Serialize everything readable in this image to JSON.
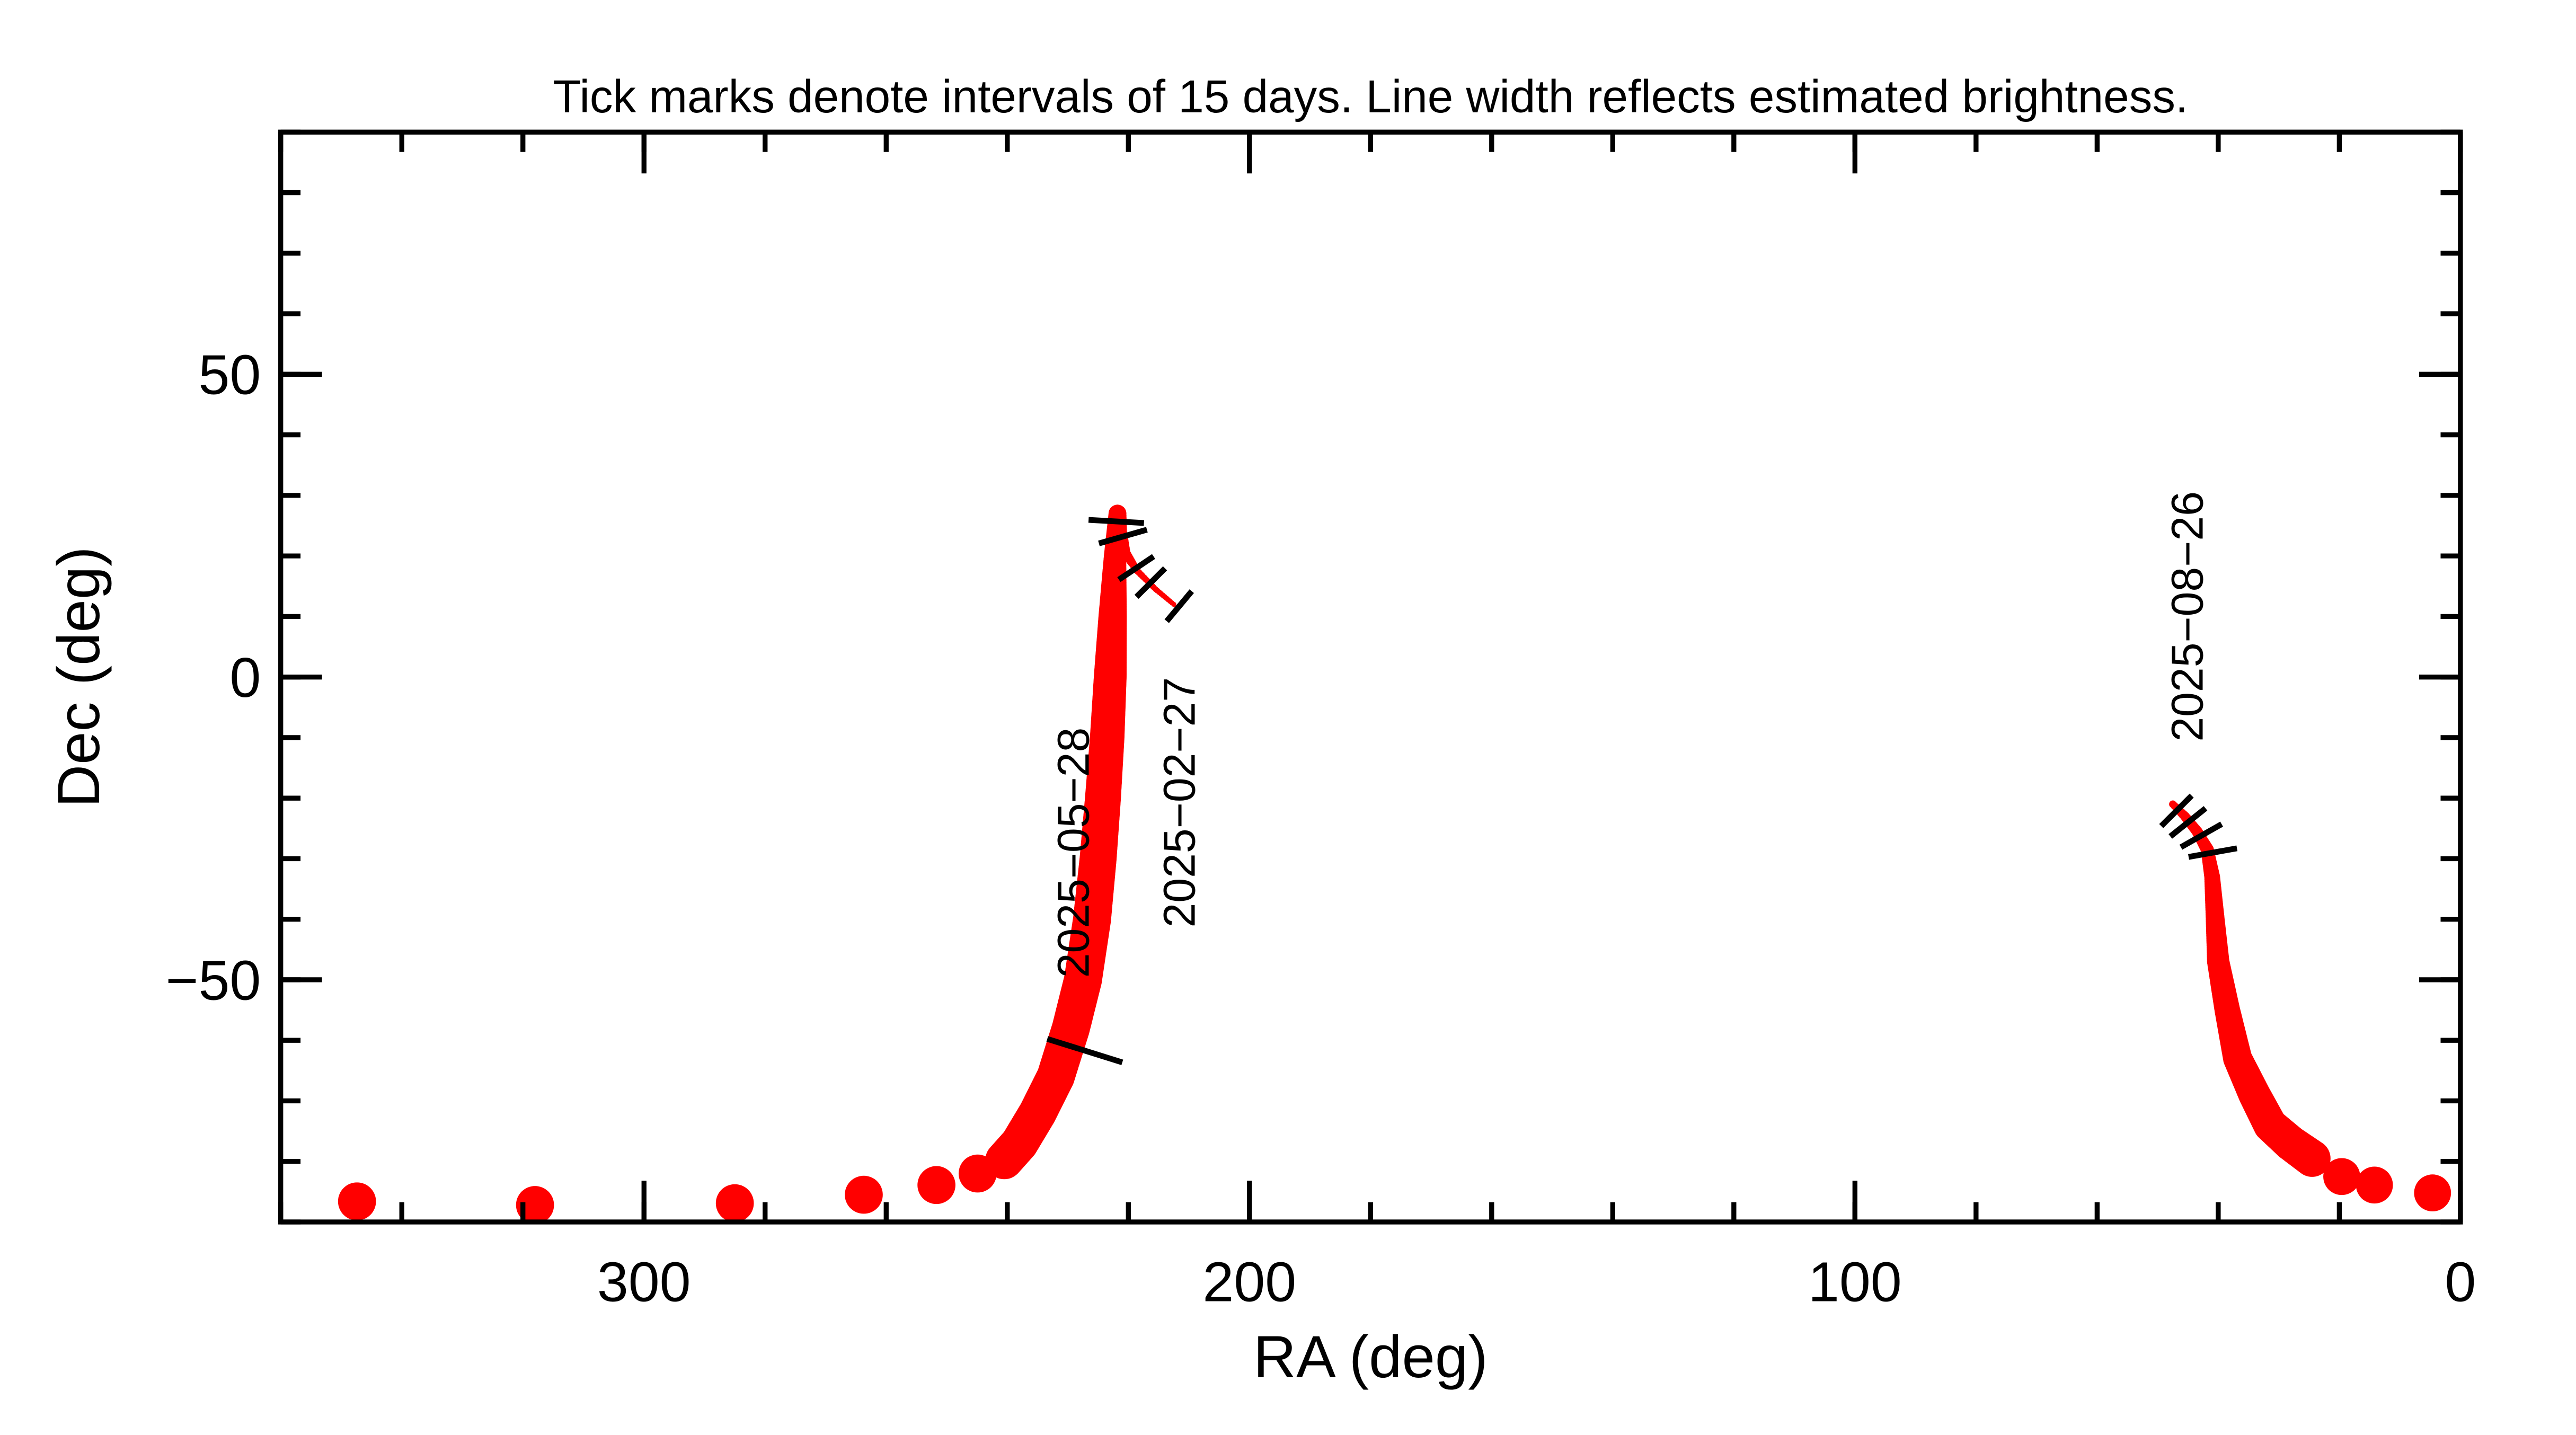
{
  "chart_data": {
    "type": "line",
    "title": "Tick marks denote intervals of 15 days.  Line width reflects estimated brightness.",
    "xlabel": "RA (deg)",
    "ylabel": "Dec (deg)",
    "xlim": [
      360,
      0
    ],
    "ylim": [
      -90,
      90
    ],
    "xticks": [
      300,
      200,
      100,
      0
    ],
    "xtick_labels": [
      "300",
      "200",
      "100",
      "0"
    ],
    "x_minor_step": 20,
    "yticks": [
      50,
      0,
      -50
    ],
    "ytick_labels": [
      "50",
      "0",
      "−50"
    ],
    "y_minor_step": 10,
    "grid": false,
    "track_color": "#ff0000",
    "tick_color": "#000000",
    "point_format": [
      "ra_deg",
      "dec_deg",
      "relative_brightness"
    ],
    "segments": [
      {
        "track": [
          [
            212.5,
            12.0,
            0.05
          ],
          [
            215.5,
            14.5,
            0.07
          ],
          [
            218.5,
            17.5,
            0.1
          ],
          [
            220.5,
            20.5,
            0.2
          ],
          [
            221.5,
            24.0,
            0.35
          ],
          [
            221.8,
            27.0,
            0.42
          ],
          [
            222.2,
            20.0,
            0.55
          ],
          [
            222.6,
            10.0,
            0.72
          ],
          [
            223.0,
            0.0,
            0.85
          ],
          [
            223.5,
            -10.0,
            0.9
          ],
          [
            224.2,
            -20.0,
            0.94
          ],
          [
            225.0,
            -30.0,
            0.97
          ],
          [
            226.0,
            -40.0,
            1.0
          ],
          [
            227.5,
            -50.0,
            1.0
          ],
          [
            229.5,
            -58.0,
            1.0
          ],
          [
            232.0,
            -66.0,
            1.0
          ],
          [
            235.0,
            -72.0,
            1.0
          ],
          [
            238.0,
            -77.0,
            1.0
          ],
          [
            240.5,
            -79.8,
            1.0
          ]
        ],
        "samples": [
          [
            244.9,
            -82.0,
            1.0
          ],
          [
            251.7,
            -83.9,
            1.0
          ],
          [
            263.7,
            -85.5,
            1.0
          ],
          [
            285.0,
            -86.9,
            1.0
          ],
          [
            318.0,
            -87.2,
            1.0
          ],
          [
            347.4,
            -86.6,
            1.0
          ]
        ]
      },
      {
        "track": [
          [
            47.5,
            -21.0,
            0.12
          ],
          [
            45.5,
            -23.0,
            0.18
          ],
          [
            43.5,
            -25.5,
            0.22
          ],
          [
            41.8,
            -28.5,
            0.28
          ],
          [
            41.0,
            -33.0,
            0.36
          ],
          [
            40.5,
            -40.0,
            0.45
          ],
          [
            40.0,
            -47.0,
            0.55
          ],
          [
            38.5,
            -55.0,
            0.64
          ],
          [
            36.8,
            -63.0,
            0.74
          ],
          [
            34.0,
            -69.0,
            0.83
          ],
          [
            31.4,
            -74.0,
            0.88
          ],
          [
            28.0,
            -77.0,
            0.93
          ],
          [
            24.5,
            -79.5,
            0.97
          ]
        ],
        "samples": [
          [
            19.6,
            -82.5,
            0.97
          ],
          [
            14.2,
            -83.9,
            0.97
          ],
          [
            4.6,
            -85.2,
            0.97
          ]
        ]
      }
    ],
    "interval_ticks": [
      [
        211.6,
        11.7
      ],
      [
        216.3,
        15.6
      ],
      [
        218.7,
        18.0
      ],
      [
        220.9,
        23.2
      ],
      [
        222.0,
        25.7
      ],
      [
        227.2,
        -61.7
      ],
      [
        46.9,
        -22.1
      ],
      [
        45.0,
        -24.0
      ],
      [
        42.8,
        -26.2
      ],
      [
        40.9,
        -29.0
      ]
    ],
    "annotations": [
      {
        "text": "2025−02−27",
        "ra": 211.0,
        "dec": -20.7
      },
      {
        "text": "2025−05−28",
        "ra": 228.5,
        "dec": -29.0
      },
      {
        "text": "2025−08−26",
        "ra": 44.5,
        "dec": 10.0
      }
    ]
  }
}
